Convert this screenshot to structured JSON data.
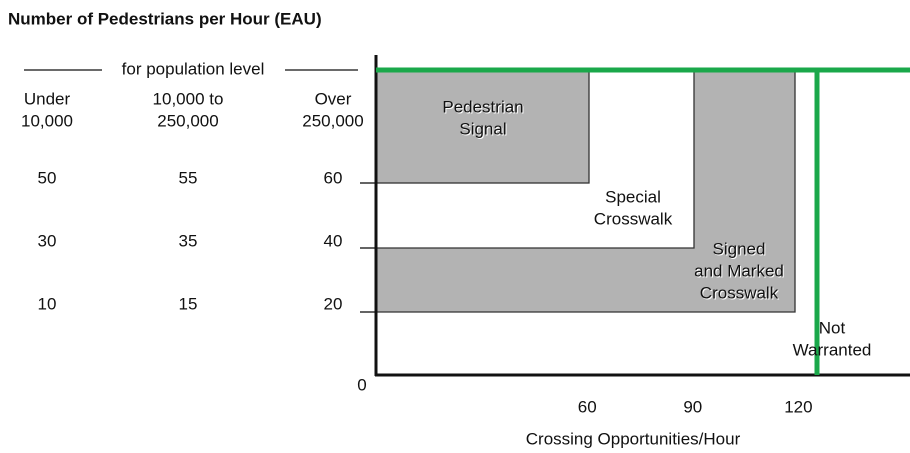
{
  "header": {
    "title": "Number of Pedestrians per Hour (EAU)"
  },
  "population_header": "for population level",
  "columns": [
    {
      "heading": [
        "Under",
        "10,000"
      ],
      "values": [
        50,
        30,
        10
      ]
    },
    {
      "heading": [
        "10,000 to",
        "250,000"
      ],
      "values": [
        55,
        35,
        15
      ]
    },
    {
      "heading": [
        "Over",
        "250,000"
      ],
      "values": [
        60,
        40,
        20
      ]
    }
  ],
  "origin": 0,
  "x_axis": {
    "label": "Crossing Opportunities/Hour",
    "ticks": [
      60,
      90,
      120
    ]
  },
  "regions": [
    {
      "label": [
        "Pedestrian",
        "Signal"
      ]
    },
    {
      "label": [
        "Special",
        "Crosswalk"
      ]
    },
    {
      "label": [
        "Signed",
        "and Marked",
        "Crosswalk"
      ]
    },
    {
      "label": [
        "Not",
        "Warranted"
      ]
    }
  ]
}
